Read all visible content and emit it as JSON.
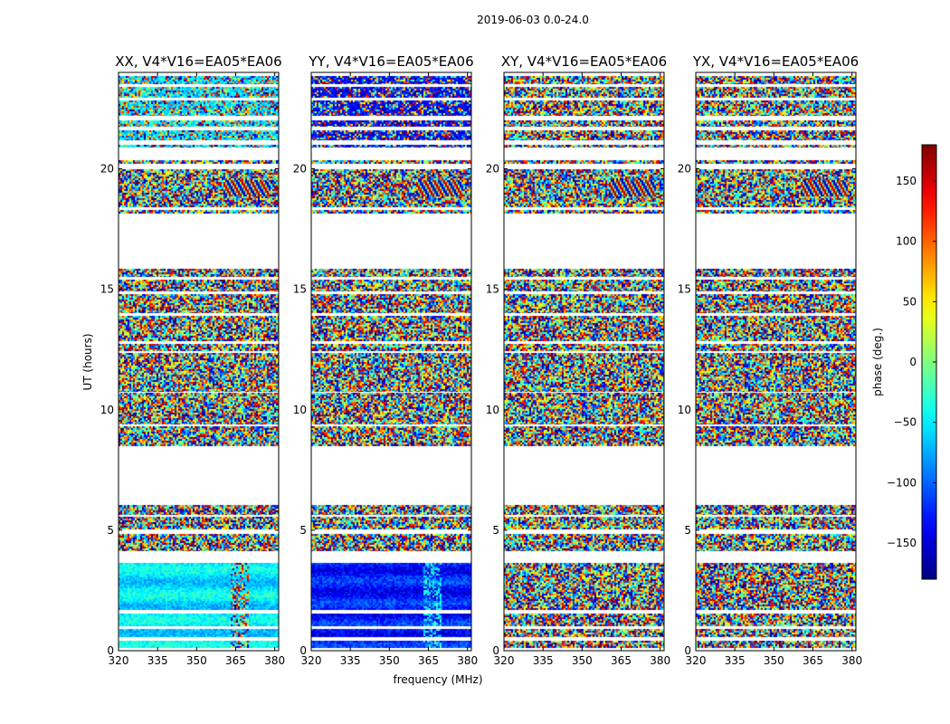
{
  "chart_data": {
    "type": "heatmap",
    "suptitle": "2019-06-03 0.0-24.0",
    "xlabel": "frequency (MHz)",
    "ylabel": "UT (hours)",
    "xlim": [
      320,
      381.5
    ],
    "ylim": [
      0,
      24
    ],
    "xticks": [
      320,
      335,
      350,
      365,
      380
    ],
    "yticks": [
      0,
      5,
      10,
      15,
      20
    ],
    "colorbar": {
      "label": "phase (deg.)",
      "range": [
        -180,
        180
      ],
      "ticks": [
        150,
        100,
        50,
        0,
        -50,
        -100,
        -150
      ],
      "tick_labels": [
        "150",
        "100",
        "50",
        "0",
        "−50",
        "−100",
        "−150"
      ],
      "colormap": "jet"
    },
    "panels": [
      {
        "title": "XX, V4*V16=EA05*EA06",
        "low_ut_mode": "coherent_cyan",
        "upper_mode": "mixed_cyan"
      },
      {
        "title": "YY, V4*V16=EA05*EA06",
        "low_ut_mode": "coherent_blue",
        "upper_mode": "mixed_blue"
      },
      {
        "title": "XY, V4*V16=EA05*EA06",
        "low_ut_mode": "noise",
        "upper_mode": "noise"
      },
      {
        "title": "YX, V4*V16=EA05*EA06",
        "low_ut_mode": "noise",
        "upper_mode": "noise"
      }
    ],
    "data_coverage_ut": [
      [
        0.1,
        0.4
      ],
      [
        0.55,
        0.9
      ],
      [
        1.0,
        1.55
      ],
      [
        1.7,
        3.65
      ],
      [
        4.15,
        4.85
      ],
      [
        5.05,
        5.55
      ],
      [
        5.65,
        6.05
      ],
      [
        8.5,
        9.3
      ],
      [
        9.4,
        10.7
      ],
      [
        10.75,
        12.35
      ],
      [
        12.45,
        12.75
      ],
      [
        12.85,
        13.9
      ],
      [
        14.0,
        14.8
      ],
      [
        14.9,
        15.4
      ],
      [
        15.5,
        15.85
      ],
      [
        18.15,
        18.3
      ],
      [
        18.4,
        20.0
      ],
      [
        20.2,
        20.35
      ],
      [
        20.9,
        21.0
      ],
      [
        21.2,
        21.6
      ],
      [
        21.75,
        22.0
      ],
      [
        22.2,
        22.85
      ],
      [
        22.95,
        23.4
      ],
      [
        23.5,
        23.85
      ]
    ]
  }
}
